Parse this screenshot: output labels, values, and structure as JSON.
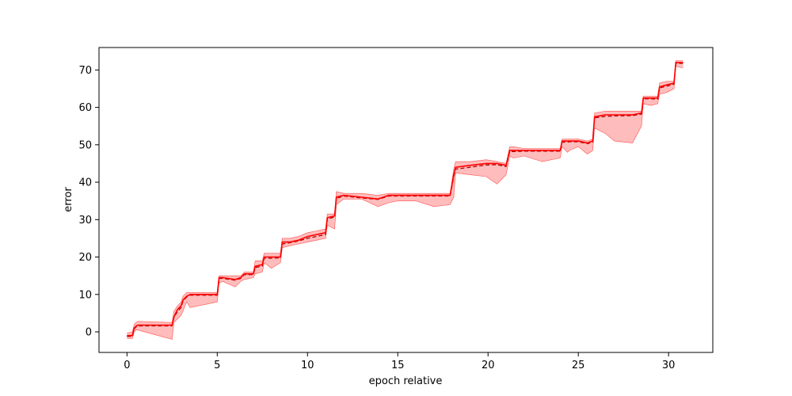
{
  "chart_data": {
    "type": "line",
    "title": "",
    "xlabel": "epoch relative",
    "ylabel": "error",
    "xlim": [
      -1.55,
      32.45
    ],
    "ylim": [
      -5.5,
      76.0
    ],
    "xticks": [
      0,
      5,
      10,
      15,
      20,
      25,
      30
    ],
    "yticks": [
      0,
      10,
      20,
      30,
      40,
      50,
      60,
      70
    ],
    "grid": false,
    "legend": "none",
    "colors": {
      "series_line": "#ff0000",
      "band_fill": "#ffb0b0",
      "band_edge": "#ff5050",
      "axis": "#000000"
    },
    "series": [
      {
        "role": "mean",
        "style": "solid",
        "x": [
          0.0,
          0.3,
          0.4,
          0.5,
          0.6,
          2.5,
          2.6,
          2.8,
          3.0,
          3.1,
          3.3,
          3.5,
          5.0,
          5.1,
          5.3,
          6.0,
          6.3,
          6.5,
          7.0,
          7.1,
          7.5,
          7.6,
          8.0,
          8.5,
          8.6,
          9.0,
          9.5,
          10.0,
          10.5,
          11.0,
          11.1,
          11.5,
          11.6,
          12.0,
          13.0,
          13.9,
          14.5,
          15.0,
          16.0,
          17.0,
          17.9,
          18.1,
          18.2,
          19.0,
          19.9,
          20.5,
          21.0,
          21.2,
          21.4,
          22.0,
          23.0,
          24.0,
          24.1,
          24.4,
          24.5,
          25.0,
          25.5,
          25.8,
          25.9,
          26.5,
          27.0,
          28.0,
          28.5,
          28.6,
          29.0,
          29.4,
          29.5,
          29.9,
          30.3,
          30.4,
          30.8
        ],
        "y": [
          -1.0,
          -1.0,
          1.0,
          1.5,
          1.8,
          1.8,
          4.0,
          6.0,
          7.0,
          8.5,
          9.5,
          10.0,
          10.0,
          14.5,
          14.5,
          14.0,
          14.5,
          15.5,
          15.5,
          17.5,
          18.0,
          20.0,
          20.0,
          20.0,
          24.0,
          24.0,
          24.5,
          25.5,
          26.0,
          26.5,
          30.5,
          31.0,
          36.0,
          36.5,
          36.0,
          35.5,
          36.5,
          36.5,
          36.5,
          36.5,
          36.5,
          42.0,
          44.0,
          44.5,
          45.0,
          45.0,
          44.5,
          48.5,
          48.5,
          48.5,
          48.5,
          48.5,
          51.0,
          51.0,
          51.0,
          51.0,
          50.5,
          51.0,
          57.5,
          58.0,
          58.0,
          58.0,
          58.5,
          62.5,
          62.5,
          62.5,
          65.5,
          66.0,
          66.5,
          72.0,
          72.0
        ]
      },
      {
        "role": "mean-dashed",
        "style": "dashed",
        "x": [
          0.0,
          0.3,
          0.4,
          0.5,
          0.6,
          2.5,
          2.6,
          2.8,
          3.0,
          3.1,
          3.3,
          3.5,
          5.0,
          5.1,
          5.3,
          6.0,
          6.3,
          6.5,
          7.0,
          7.1,
          7.5,
          7.6,
          8.0,
          8.5,
          8.6,
          9.0,
          9.5,
          10.0,
          10.5,
          11.0,
          11.1,
          11.5,
          11.6,
          12.0,
          13.0,
          13.9,
          14.5,
          15.0,
          16.0,
          17.0,
          17.9,
          18.1,
          18.2,
          19.0,
          19.9,
          20.5,
          21.0,
          21.2,
          21.4,
          22.0,
          23.0,
          24.0,
          24.1,
          24.4,
          24.5,
          25.0,
          25.5,
          25.8,
          25.9,
          26.5,
          27.0,
          28.0,
          28.5,
          28.6,
          29.0,
          29.4,
          29.5,
          29.9,
          30.3,
          30.4,
          30.8
        ],
        "y": [
          -1.2,
          -1.2,
          0.8,
          1.3,
          1.6,
          1.6,
          3.8,
          5.5,
          6.5,
          8.2,
          9.3,
          9.8,
          9.8,
          14.3,
          14.3,
          13.8,
          14.3,
          15.3,
          15.3,
          17.2,
          17.6,
          19.7,
          19.7,
          19.8,
          23.5,
          23.8,
          24.3,
          25.0,
          25.5,
          26.0,
          30.2,
          30.7,
          35.7,
          36.3,
          35.8,
          35.4,
          36.3,
          36.3,
          36.3,
          36.3,
          36.3,
          41.5,
          43.5,
          44.0,
          44.6,
          44.7,
          44.2,
          48.2,
          48.2,
          48.3,
          48.3,
          48.3,
          50.7,
          50.7,
          50.8,
          50.8,
          50.3,
          50.7,
          57.2,
          57.6,
          57.7,
          57.8,
          58.2,
          62.3,
          62.3,
          62.2,
          65.2,
          65.7,
          66.2,
          71.7,
          71.8
        ]
      },
      {
        "role": "band-upper",
        "style": "thin",
        "x": [
          0.0,
          0.3,
          0.4,
          0.5,
          0.6,
          2.5,
          2.6,
          2.8,
          3.0,
          3.1,
          3.3,
          3.5,
          5.0,
          5.1,
          5.3,
          6.0,
          6.3,
          6.5,
          7.0,
          7.1,
          7.5,
          7.6,
          8.0,
          8.5,
          8.6,
          9.0,
          9.5,
          10.0,
          10.5,
          11.0,
          11.1,
          11.5,
          11.6,
          12.0,
          13.0,
          13.9,
          14.5,
          15.0,
          16.0,
          17.0,
          17.9,
          18.1,
          18.2,
          19.0,
          19.9,
          20.5,
          21.0,
          21.2,
          21.4,
          22.0,
          23.0,
          24.0,
          24.1,
          24.4,
          24.5,
          25.0,
          25.5,
          25.8,
          25.9,
          26.5,
          27.0,
          28.0,
          28.5,
          28.6,
          29.0,
          29.4,
          29.5,
          29.9,
          30.3,
          30.4,
          30.8
        ],
        "y": [
          -0.3,
          0.0,
          2.0,
          2.5,
          2.8,
          2.5,
          5.5,
          7.0,
          8.0,
          9.5,
          10.5,
          10.5,
          10.5,
          15.0,
          15.0,
          15.0,
          15.0,
          16.0,
          16.0,
          19.0,
          19.0,
          21.0,
          21.0,
          21.0,
          25.0,
          25.0,
          25.5,
          26.5,
          27.0,
          27.5,
          31.5,
          31.5,
          37.5,
          37.0,
          37.0,
          36.5,
          37.0,
          37.0,
          37.0,
          37.0,
          37.0,
          43.5,
          45.5,
          45.5,
          46.0,
          45.5,
          45.0,
          49.5,
          49.5,
          49.0,
          49.0,
          49.0,
          51.5,
          51.5,
          51.5,
          51.5,
          51.0,
          51.5,
          58.5,
          59.0,
          59.0,
          59.0,
          59.0,
          63.0,
          63.0,
          63.0,
          66.5,
          67.0,
          67.0,
          72.5,
          72.5
        ]
      },
      {
        "role": "band-lower",
        "style": "thin",
        "x": [
          0.0,
          0.3,
          0.4,
          0.5,
          0.6,
          2.5,
          2.6,
          2.8,
          3.0,
          3.1,
          3.3,
          3.5,
          5.0,
          5.1,
          5.3,
          6.0,
          6.3,
          6.5,
          7.0,
          7.1,
          7.5,
          7.6,
          8.0,
          8.5,
          8.6,
          9.0,
          9.5,
          10.0,
          10.5,
          11.0,
          11.1,
          11.5,
          11.6,
          12.0,
          13.0,
          13.9,
          14.5,
          15.0,
          16.0,
          17.0,
          17.9,
          18.1,
          18.2,
          19.0,
          19.9,
          20.5,
          21.0,
          21.2,
          21.4,
          22.0,
          23.0,
          24.0,
          24.1,
          24.4,
          24.5,
          25.0,
          25.5,
          25.8,
          25.9,
          26.5,
          27.0,
          28.0,
          28.5,
          28.6,
          29.0,
          29.4,
          29.5,
          29.9,
          30.3,
          30.4,
          30.8
        ],
        "y": [
          -1.8,
          -1.8,
          0.0,
          0.5,
          0.5,
          -2.0,
          2.5,
          3.5,
          4.5,
          5.5,
          8.0,
          6.5,
          8.0,
          13.0,
          13.5,
          12.0,
          13.5,
          14.0,
          14.5,
          15.5,
          16.0,
          18.5,
          17.0,
          18.5,
          22.5,
          23.0,
          23.5,
          24.0,
          24.5,
          25.0,
          28.5,
          27.5,
          34.0,
          35.5,
          35.5,
          33.5,
          34.5,
          35.0,
          35.0,
          33.5,
          34.0,
          36.0,
          42.5,
          42.0,
          41.5,
          39.5,
          42.0,
          47.0,
          46.5,
          47.0,
          45.5,
          46.5,
          49.5,
          48.0,
          48.5,
          49.5,
          47.5,
          48.5,
          54.5,
          53.0,
          51.0,
          50.5,
          55.0,
          61.0,
          60.5,
          61.0,
          63.5,
          64.0,
          65.0,
          71.0,
          70.5
        ]
      }
    ]
  }
}
